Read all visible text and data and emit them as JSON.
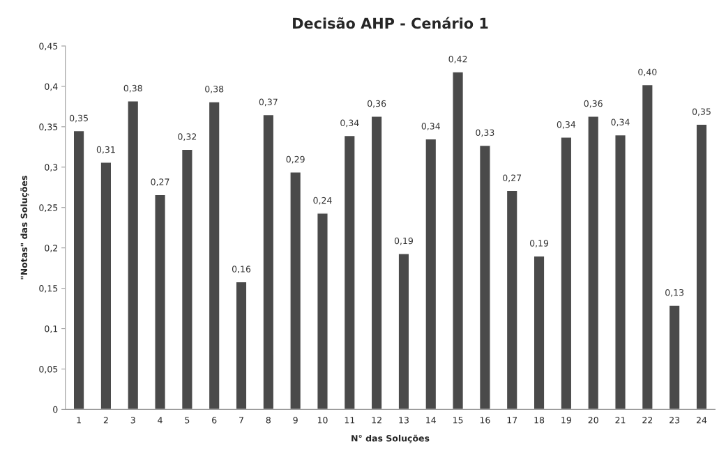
{
  "chart_data": {
    "type": "bar",
    "title": "Decisão AHP - Cenário 1",
    "xlabel": "N° das Soluções",
    "ylabel": "\"Notas\" das Soluções",
    "categories": [
      "1",
      "2",
      "3",
      "4",
      "5",
      "6",
      "7",
      "8",
      "9",
      "10",
      "11",
      "12",
      "13",
      "14",
      "15",
      "16",
      "17",
      "18",
      "19",
      "20",
      "21",
      "22",
      "23",
      "24"
    ],
    "values": [
      0.345,
      0.306,
      0.382,
      0.266,
      0.322,
      0.381,
      0.158,
      0.365,
      0.294,
      0.243,
      0.339,
      0.363,
      0.193,
      0.335,
      0.418,
      0.327,
      0.271,
      0.19,
      0.337,
      0.363,
      0.34,
      0.402,
      0.129,
      0.353
    ],
    "value_labels": [
      "0,35",
      "0,31",
      "0,38",
      "0,27",
      "0,32",
      "0,38",
      "0,16",
      "0,37",
      "0,29",
      "0,24",
      "0,34",
      "0,36",
      "0,19",
      "0,34",
      "0,42",
      "0,33",
      "0,27",
      "0,19",
      "0,34",
      "0,36",
      "0,34",
      "0,40",
      "0,13",
      "0,35"
    ],
    "color": "#4a4a4a",
    "ylim": [
      0,
      0.45
    ],
    "yticks": [
      0,
      {
        "value": 0.05,
        "label": "0,05"
      },
      {
        "value": 0.1,
        "label": "0,1"
      },
      {
        "value": 0.15,
        "label": "0,15"
      },
      {
        "value": 0.2,
        "label": "0,2"
      },
      {
        "value": 0.25,
        "label": "0,25"
      },
      {
        "value": 0.3,
        "label": "0,3"
      },
      {
        "value": 0.35,
        "label": "0,35"
      },
      {
        "value": 0.4,
        "label": "0,4"
      },
      {
        "value": 0.45,
        "label": "0,45"
      }
    ],
    "grid": false,
    "legend": false
  }
}
